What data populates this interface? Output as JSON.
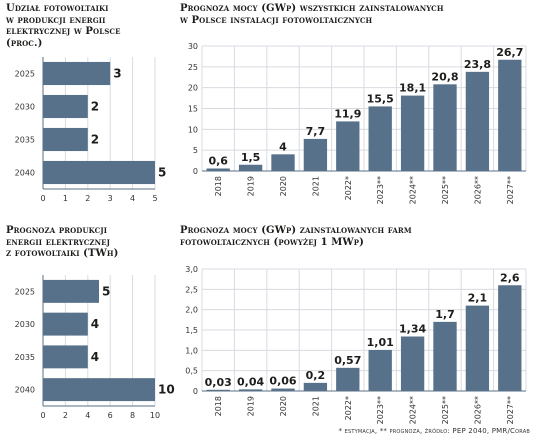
{
  "footnote": "* estymacja, ** prognoza, źródło: PEP 2040, PMR/Corab",
  "chart_data": [
    {
      "id": "share",
      "type": "bar",
      "orientation": "horizontal",
      "title": "Udział fotowoltaiki w produkcji energii elektrycznej w Polsce (proc.)",
      "title_lines": [
        "Udział fotowoltaiki",
        "w produkcji energii",
        "elektrycznej w Polsce",
        "(proc.)"
      ],
      "categories": [
        "2025",
        "2030",
        "2035",
        "2040"
      ],
      "values": [
        3,
        2,
        2,
        5
      ],
      "value_labels": [
        "3",
        "2",
        "2",
        "5"
      ],
      "xlim": [
        0,
        5
      ],
      "xticks": [
        0,
        1,
        2,
        3,
        4,
        5
      ],
      "grid": true,
      "color": "#567189"
    },
    {
      "id": "capacity",
      "type": "bar",
      "title": "Prognoza mocy (GWp) wszystkich zainstalowanych w Polsce instalacji fotowoltaicznych",
      "title_lines": [
        "Prognoza mocy (GWp) wszystkich zainstalowanych",
        "w Polsce instalacji fotowoltaicznych"
      ],
      "categories": [
        "2018",
        "2019",
        "2020",
        "2021",
        "2022*",
        "2023**",
        "2024**",
        "2025**",
        "2026**",
        "2027**"
      ],
      "values": [
        0.6,
        1.5,
        4,
        7.7,
        11.9,
        15.5,
        18.1,
        20.8,
        23.8,
        26.7
      ],
      "value_labels": [
        "0,6",
        "1,5",
        "4",
        "7,7",
        "11,9",
        "15,5",
        "18,1",
        "20,8",
        "23,8",
        "26,7"
      ],
      "ylim": [
        0,
        30
      ],
      "yticks": [
        0,
        5,
        10,
        15,
        20,
        25,
        30
      ],
      "grid": true,
      "color": "#567189"
    },
    {
      "id": "production",
      "type": "bar",
      "orientation": "horizontal",
      "title": "Prognoza produkcji energii elektrycznej z fotowoltaiki (TWh)",
      "title_lines": [
        "Prognoza produkcji",
        "energii elektrycznej",
        "z fotowoltaiki (TWh)"
      ],
      "categories": [
        "2025",
        "2030",
        "2035",
        "2040"
      ],
      "values": [
        5,
        4,
        4,
        10
      ],
      "value_labels": [
        "5",
        "4",
        "4",
        "10"
      ],
      "xlim": [
        0,
        10
      ],
      "xticks": [
        0,
        2,
        4,
        6,
        8,
        10
      ],
      "grid": true,
      "color": "#567189"
    },
    {
      "id": "farms",
      "type": "bar",
      "title": "Prognoza mocy (GWp) zainstalowanych farm fotowoltaicznych (powyżej 1 MWp)",
      "title_lines": [
        "Prognoza mocy (GWp) zainstalowanych farm",
        "fotowoltaicznych (powyżej 1 MWp)"
      ],
      "categories": [
        "2018",
        "2019",
        "2020",
        "2021",
        "2022*",
        "2023**",
        "2024**",
        "2025**",
        "2026**",
        "2027**"
      ],
      "values": [
        0.03,
        0.04,
        0.06,
        0.2,
        0.57,
        1.01,
        1.34,
        1.7,
        2.1,
        2.6
      ],
      "value_labels": [
        "0,03",
        "0,04",
        "0,06",
        "0,2",
        "0,57",
        "1,01",
        "1,34",
        "1,7",
        "2,1",
        "2,6"
      ],
      "ylim": [
        0,
        3.0
      ],
      "yticks": [
        0,
        0.5,
        1.0,
        1.5,
        2.0,
        2.5,
        3.0
      ],
      "ytick_labels": [
        "0",
        "0,5",
        "1,0",
        "1,5",
        "2,0",
        "2,5",
        "3,0"
      ],
      "grid": true,
      "color": "#567189"
    }
  ]
}
